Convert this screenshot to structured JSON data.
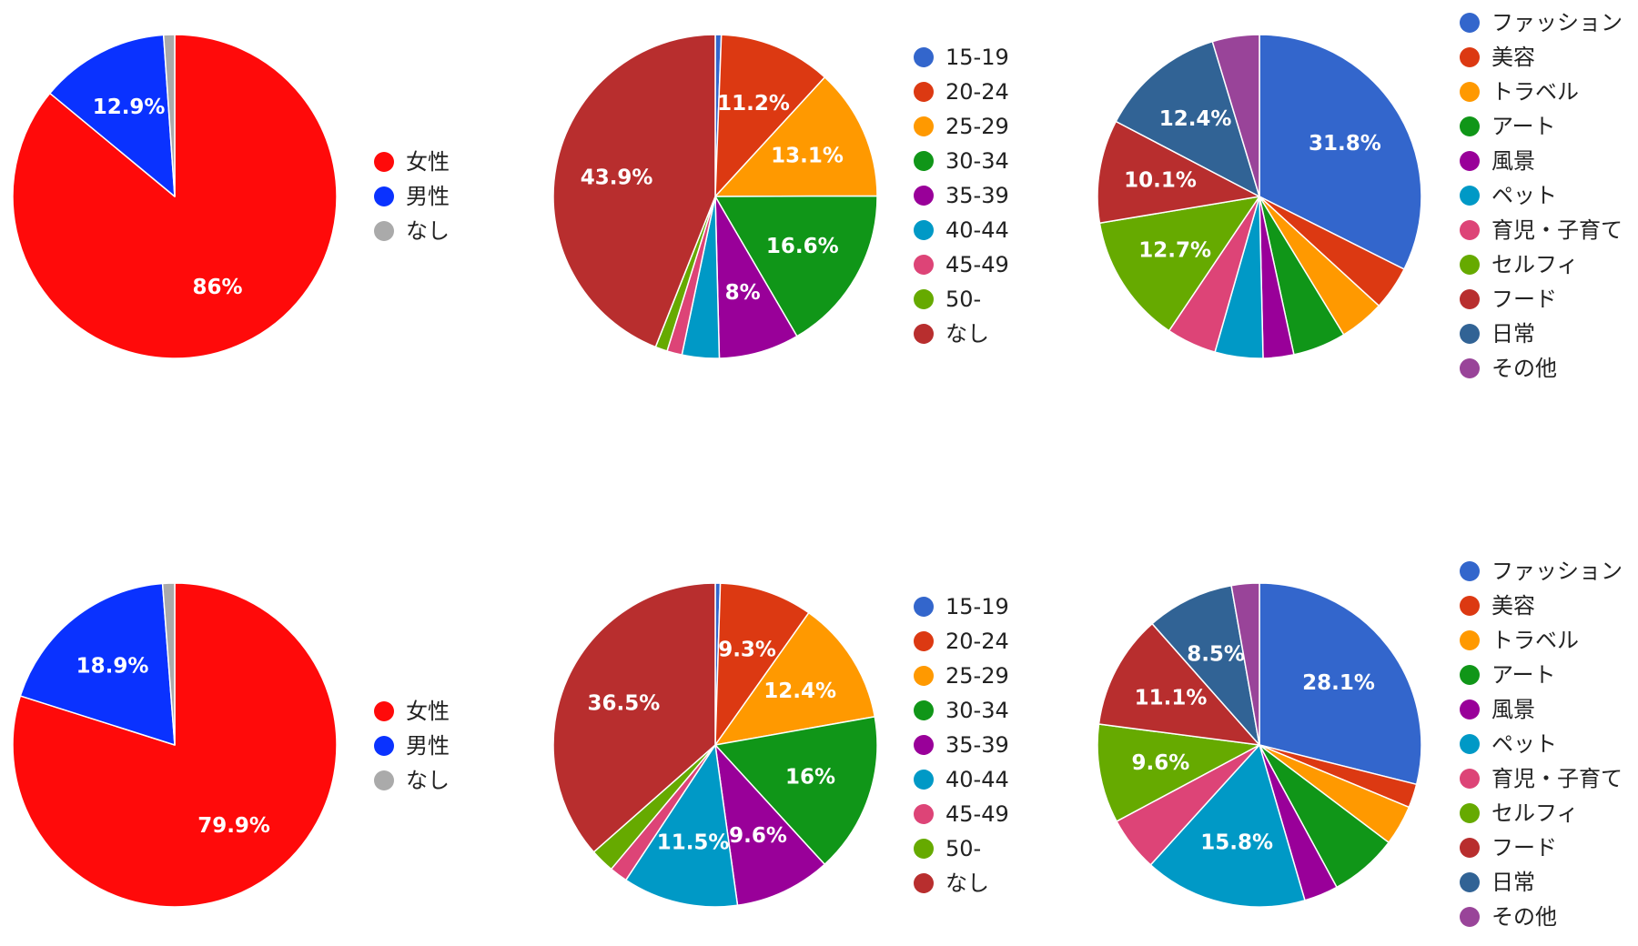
{
  "chart_data": [
    {
      "type": "pie",
      "id": "gender-top",
      "categories": [
        "女性",
        "男性",
        "なし"
      ],
      "values": [
        86.0,
        12.9,
        1.1
      ],
      "data_labels": [
        "86%",
        "12.9%",
        ""
      ],
      "colors": [
        "#ff0a0a",
        "#0a32ff",
        "#aaaaaa"
      ]
    },
    {
      "type": "pie",
      "id": "age-top",
      "categories": [
        "15-19",
        "20-24",
        "25-29",
        "30-34",
        "35-39",
        "40-44",
        "45-49",
        "50-",
        "なし"
      ],
      "values": [
        0.6,
        11.2,
        13.1,
        16.6,
        8.0,
        3.7,
        1.5,
        1.2,
        43.9
      ],
      "data_labels": [
        "",
        "11.2%",
        "13.1%",
        "16.6%",
        "8%",
        "",
        "",
        "",
        "43.9%"
      ],
      "colors": [
        "#3366cc",
        "#dc3912",
        "#ff9900",
        "#109618",
        "#990099",
        "#0099c6",
        "#dd4477",
        "#66aa00",
        "#b82e2e"
      ]
    },
    {
      "type": "pie",
      "id": "genre-top",
      "categories": [
        "ファッション",
        "美容",
        "トラベル",
        "アート",
        "風景",
        "ペット",
        "育児・子育て",
        "セルフィ",
        "フード",
        "日常",
        "その他"
      ],
      "values": [
        31.8,
        4.3,
        4.4,
        5.2,
        3.0,
        4.7,
        4.9,
        12.7,
        10.1,
        12.4,
        4.6
      ],
      "data_labels": [
        "31.8%",
        "",
        "",
        "",
        "",
        "",
        "",
        "12.7%",
        "10.1%",
        "12.4%",
        ""
      ],
      "colors": [
        "#3366cc",
        "#dc3912",
        "#ff9900",
        "#109618",
        "#990099",
        "#0099c6",
        "#dd4477",
        "#66aa00",
        "#b82e2e",
        "#316395",
        "#994499"
      ]
    },
    {
      "type": "pie",
      "id": "gender-bottom",
      "categories": [
        "女性",
        "男性",
        "なし"
      ],
      "values": [
        79.9,
        18.9,
        1.2
      ],
      "data_labels": [
        "79.9%",
        "18.9%",
        ""
      ],
      "colors": [
        "#ff0a0a",
        "#0a32ff",
        "#aaaaaa"
      ]
    },
    {
      "type": "pie",
      "id": "age-bottom",
      "categories": [
        "15-19",
        "20-24",
        "25-29",
        "30-34",
        "35-39",
        "40-44",
        "45-49",
        "50-",
        "なし"
      ],
      "values": [
        0.5,
        9.3,
        12.4,
        16.0,
        9.6,
        11.5,
        1.8,
        2.4,
        36.5
      ],
      "data_labels": [
        "",
        "9.3%",
        "12.4%",
        "16%",
        "9.6%",
        "11.5%",
        "",
        "",
        "36.5%"
      ],
      "colors": [
        "#3366cc",
        "#dc3912",
        "#ff9900",
        "#109618",
        "#990099",
        "#0099c6",
        "#dd4477",
        "#66aa00",
        "#b82e2e"
      ]
    },
    {
      "type": "pie",
      "id": "genre-bottom",
      "categories": [
        "ファッション",
        "美容",
        "トラベル",
        "アート",
        "風景",
        "ペット",
        "育児・子育て",
        "セルフィ",
        "フード",
        "日常",
        "その他"
      ],
      "values": [
        28.1,
        2.3,
        3.9,
        6.6,
        3.3,
        15.8,
        5.3,
        9.6,
        11.1,
        8.5,
        2.7
      ],
      "data_labels": [
        "28.1%",
        "",
        "",
        "",
        "",
        "15.8%",
        "",
        "9.6%",
        "11.1%",
        "8.5%",
        ""
      ],
      "colors": [
        "#3366cc",
        "#dc3912",
        "#ff9900",
        "#109618",
        "#990099",
        "#0099c6",
        "#dd4477",
        "#66aa00",
        "#b82e2e",
        "#316395",
        "#994499"
      ]
    }
  ]
}
